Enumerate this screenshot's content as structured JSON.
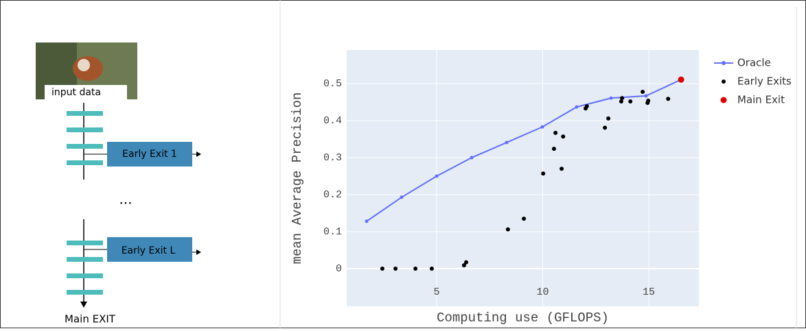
{
  "diagram": {
    "input_label": "input data",
    "exits": [
      "Early Exit 1",
      "Early Exit L"
    ],
    "ellipsis": "...",
    "main_exit": "Main EXIT"
  },
  "chart_data": {
    "type": "scatter",
    "x_label": "Computing use (GFLOPS)",
    "y_label": "mean Average Precision",
    "xlim": [
      0.76,
      17.36
    ],
    "ylim": [
      -0.102,
      0.591
    ],
    "xticks": [
      5,
      10,
      15
    ],
    "yticks": [
      0,
      0.1,
      0.2,
      0.3,
      0.4,
      0.5
    ],
    "grid": true,
    "legend": "outside-right",
    "series": [
      {
        "name": "Oracle",
        "color": "#636efa",
        "mode": "lines+markers",
        "x": [
          1.7,
          3.35,
          5.0,
          6.65,
          8.3,
          9.98,
          11.6,
          13.22,
          14.87,
          16.52
        ],
        "values": [
          0.128,
          0.193,
          0.25,
          0.3,
          0.341,
          0.383,
          0.437,
          0.461,
          0.467,
          0.511
        ]
      },
      {
        "name": "Early Exits",
        "color": "#000000",
        "mode": "markers",
        "x": [
          2.44,
          3.06,
          4.0,
          4.77,
          6.29,
          6.39,
          8.36,
          9.11,
          10.02,
          10.6,
          10.53,
          10.96,
          10.89,
          12.02,
          12.08,
          12.93,
          13.09,
          13.7,
          13.74,
          14.13,
          14.94,
          14.97,
          14.71,
          15.91
        ],
        "values": [
          0,
          0,
          0,
          0,
          0.009,
          0.017,
          0.106,
          0.135,
          0.257,
          0.367,
          0.324,
          0.357,
          0.27,
          0.433,
          0.439,
          0.381,
          0.406,
          0.452,
          0.461,
          0.452,
          0.448,
          0.454,
          0.478,
          0.459
        ]
      },
      {
        "name": "Main Exit",
        "color": "#e00000",
        "mode": "markers",
        "size": 9,
        "x": [
          16.52
        ],
        "values": [
          0.511
        ]
      }
    ]
  }
}
